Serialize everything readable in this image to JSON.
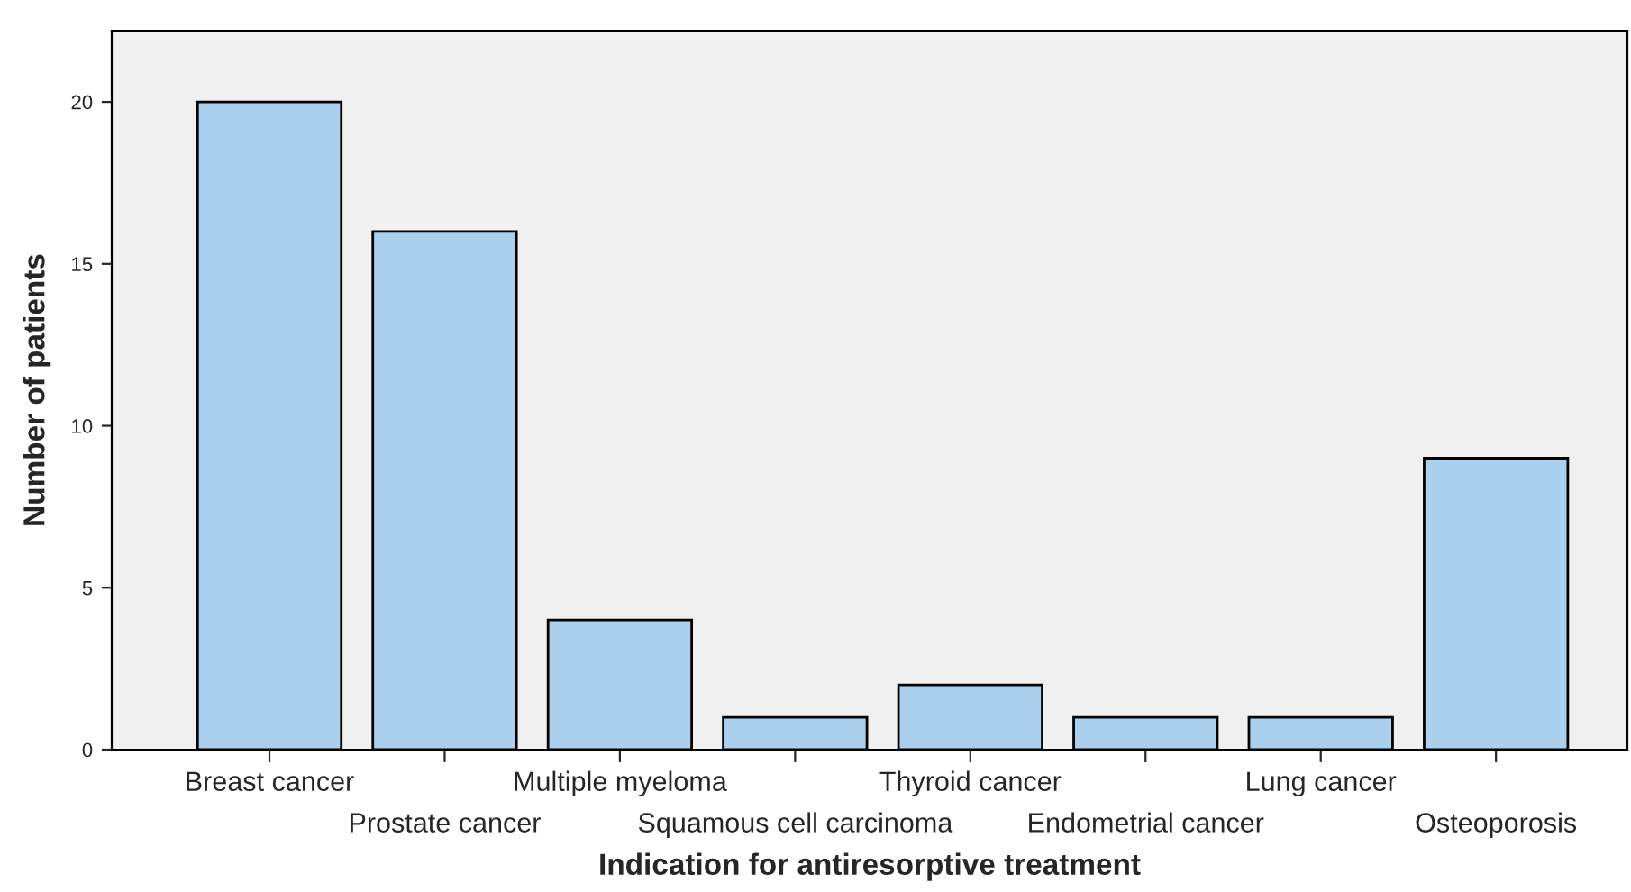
{
  "chart_data": {
    "type": "bar",
    "xlabel": "Indication for antiresorptive treatment",
    "ylabel": "Number of patients",
    "categories": [
      "Breast cancer",
      "Prostate cancer",
      "Multiple myeloma",
      "Squamous cell carcinoma",
      "Thyroid cancer",
      "Endometrial cancer",
      "Lung cancer",
      "Osteoporosis"
    ],
    "values": [
      20,
      16,
      4,
      1,
      2,
      1,
      1,
      9
    ],
    "color": "#abd0ee",
    "ylim": [
      0,
      22.2
    ],
    "yticks": [
      0,
      5,
      10,
      15,
      20
    ],
    "grid": false
  }
}
